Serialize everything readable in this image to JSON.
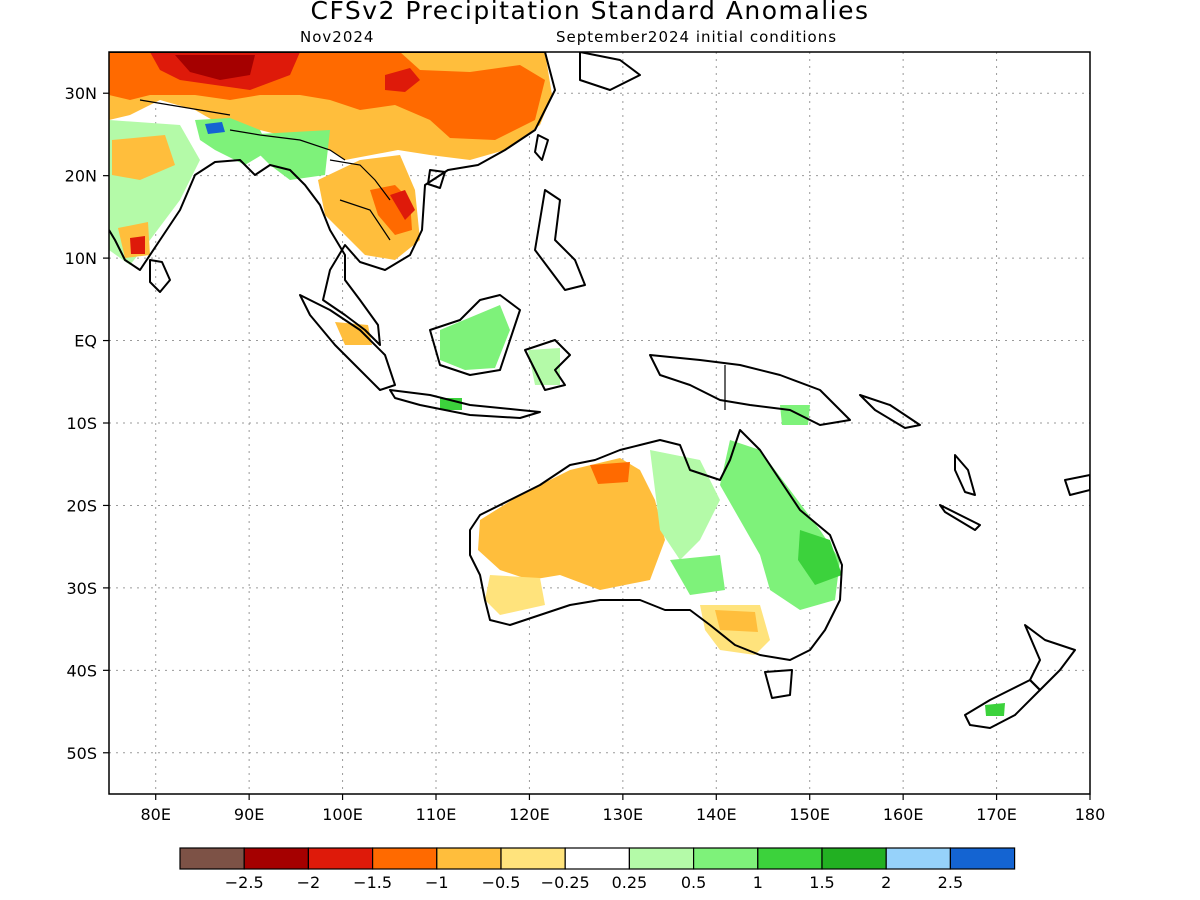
{
  "title": "CFSv2 Precipitation Standard Anomalies",
  "subtitle_left": "Nov2024",
  "subtitle_right": "September2024 initial conditions",
  "axes": {
    "lon_range": [
      75,
      180
    ],
    "lat_range": [
      -55,
      35
    ],
    "lon_ticks": [
      {
        "value": 80,
        "label": "80E"
      },
      {
        "value": 90,
        "label": "90E"
      },
      {
        "value": 100,
        "label": "100E"
      },
      {
        "value": 110,
        "label": "110E"
      },
      {
        "value": 120,
        "label": "120E"
      },
      {
        "value": 130,
        "label": "130E"
      },
      {
        "value": 140,
        "label": "140E"
      },
      {
        "value": 150,
        "label": "150E"
      },
      {
        "value": 160,
        "label": "160E"
      },
      {
        "value": 170,
        "label": "170E"
      },
      {
        "value": 180,
        "label": "180"
      }
    ],
    "lat_ticks": [
      {
        "value": 30,
        "label": "30N"
      },
      {
        "value": 20,
        "label": "20N"
      },
      {
        "value": 10,
        "label": "10N"
      },
      {
        "value": 0,
        "label": "EQ"
      },
      {
        "value": -10,
        "label": "10S"
      },
      {
        "value": -20,
        "label": "20S"
      },
      {
        "value": -30,
        "label": "30S"
      },
      {
        "value": -40,
        "label": "40S"
      },
      {
        "value": -50,
        "label": "50S"
      }
    ],
    "grid": "dotted"
  },
  "colorbar": {
    "colors": [
      "#7d5246",
      "#a50000",
      "#de1a0a",
      "#ff6a00",
      "#ffbe3c",
      "#ffe37c",
      "#ffffff",
      "#b4faa8",
      "#7ef27a",
      "#3cd23c",
      "#22b022",
      "#96d2fa",
      "#1464d2"
    ],
    "labels": [
      "−2.5",
      "−2",
      "−1.5",
      "−1",
      "−0.5",
      "−0.25",
      "0.25",
      "0.5",
      "1",
      "1.5",
      "2",
      "2.5"
    ]
  },
  "map": {
    "land_outline_color": "#000000",
    "anomaly_regions": [
      {
        "name": "Tibet / China",
        "anomaly": "-1 to -2"
      },
      {
        "name": "Indochina",
        "anomaly": "-0.5 to -1.5"
      },
      {
        "name": "Borneo",
        "anomaly": "0.5 to 1"
      },
      {
        "name": "Northern Australia",
        "anomaly": "-0.5 to -1.5"
      },
      {
        "name": "Eastern Australia",
        "anomaly": "0.5 to 1.5"
      },
      {
        "name": "Southern Australia",
        "anomaly": "-0.25 to -0.5"
      }
    ]
  }
}
